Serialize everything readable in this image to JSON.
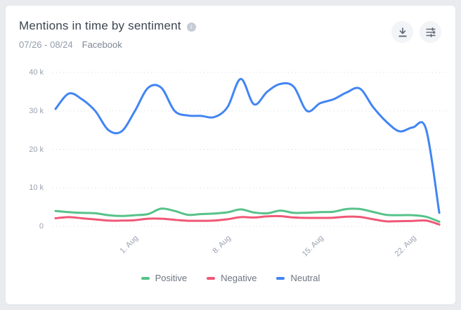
{
  "header": {
    "title": "Mentions in time by sentiment",
    "date_range": "07/26 - 08/24",
    "source": "Facebook",
    "actions": [
      {
        "name": "download",
        "icon": "download-icon"
      },
      {
        "name": "chart-settings",
        "icon": "sliders-icon"
      }
    ]
  },
  "chart_data": {
    "type": "line",
    "title": "Mentions in time by sentiment",
    "x_dates": [
      "07/26",
      "07/27",
      "07/28",
      "07/29",
      "07/30",
      "07/31",
      "08/01",
      "08/02",
      "08/03",
      "08/04",
      "08/05",
      "08/06",
      "08/07",
      "08/08",
      "08/09",
      "08/10",
      "08/11",
      "08/12",
      "08/13",
      "08/14",
      "08/15",
      "08/16",
      "08/17",
      "08/18",
      "08/19",
      "08/20",
      "08/21",
      "08/22",
      "08/23",
      "08/24"
    ],
    "x_tick_labels": [
      "1. Aug",
      "8. Aug",
      "15. Aug",
      "22. Aug"
    ],
    "x_tick_day_indices": [
      6,
      13,
      20,
      27
    ],
    "y_tick_labels": [
      "40 k",
      "30 k",
      "20 k",
      "10 k",
      "0"
    ],
    "ylim": [
      0,
      40000
    ],
    "grid": "horizontal-dotted",
    "legend_position": "bottom",
    "series": [
      {
        "name": "Positive",
        "color": "#57c289",
        "values": [
          4000,
          3700,
          3500,
          3400,
          2900,
          2700,
          2900,
          3200,
          4600,
          4000,
          3000,
          3200,
          3350,
          3650,
          4400,
          3600,
          3400,
          4100,
          3500,
          3550,
          3700,
          3800,
          4500,
          4500,
          3750,
          3000,
          2900,
          2900,
          2500,
          1200
        ]
      },
      {
        "name": "Negative",
        "color": "#f15776",
        "values": [
          2100,
          2400,
          2100,
          1800,
          1500,
          1500,
          1600,
          2000,
          2000,
          1700,
          1450,
          1450,
          1500,
          1850,
          2400,
          2300,
          2600,
          2650,
          2300,
          2200,
          2200,
          2250,
          2500,
          2450,
          1850,
          1300,
          1350,
          1400,
          1500,
          500
        ]
      },
      {
        "name": "Neutral",
        "color": "#4285f4",
        "values": [
          30500,
          34500,
          33000,
          30000,
          25000,
          24700,
          30000,
          36000,
          36000,
          30000,
          28800,
          28700,
          28400,
          31000,
          38300,
          31700,
          35000,
          37000,
          36300,
          30000,
          32000,
          33000,
          34800,
          35800,
          31000,
          27200,
          24700,
          25700,
          25300,
          3500
        ]
      }
    ]
  }
}
